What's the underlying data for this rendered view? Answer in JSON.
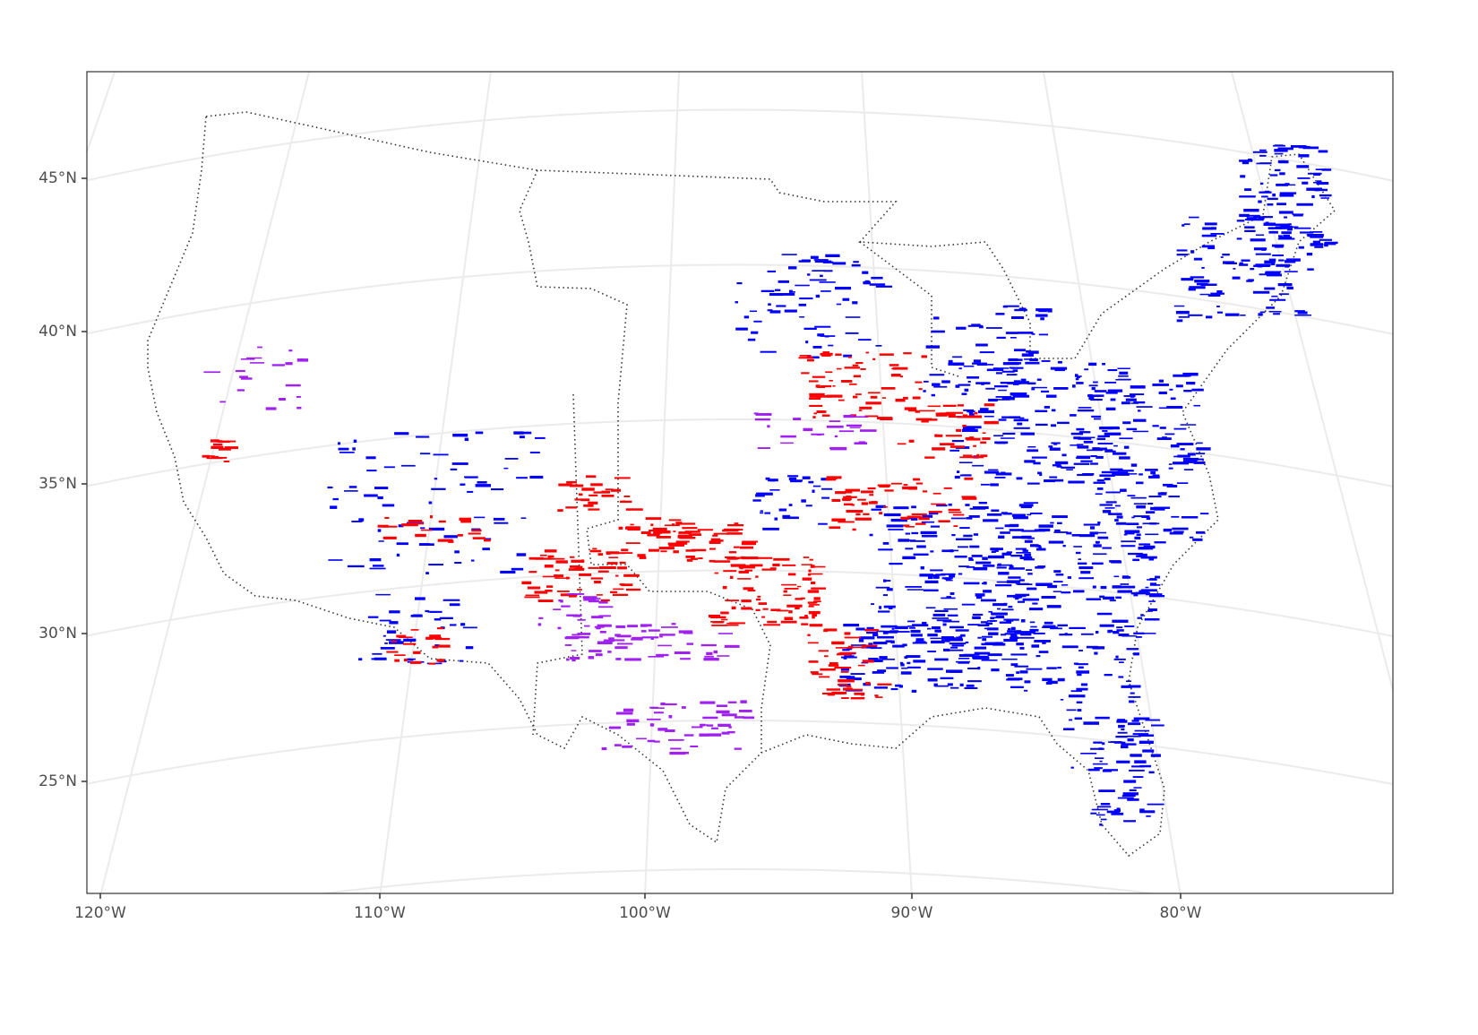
{
  "map": {
    "lat_labels": [
      "45°N",
      "40°N",
      "35°N",
      "30°N",
      "25°N"
    ],
    "lon_labels": [
      "120°W",
      "110°W",
      "100°W",
      "90°W",
      "80°W"
    ]
  }
}
